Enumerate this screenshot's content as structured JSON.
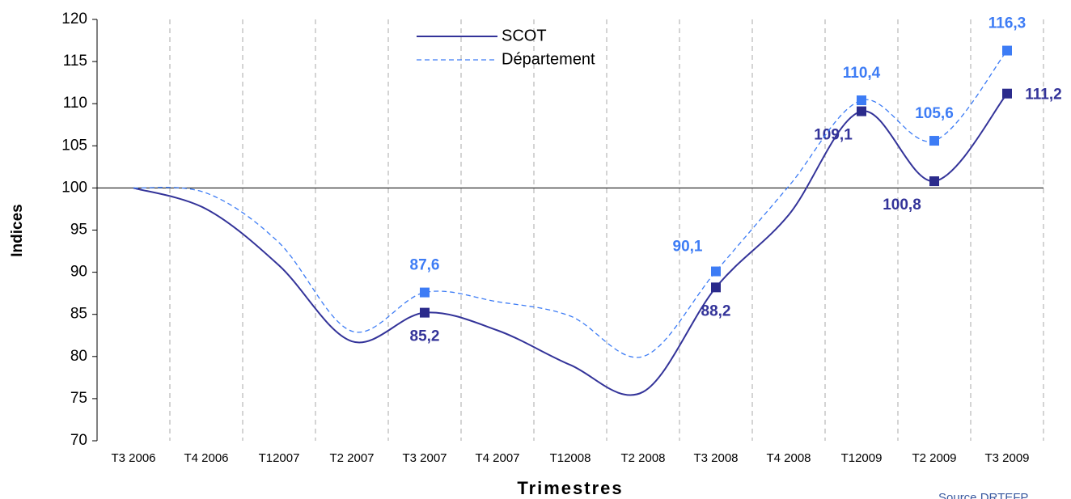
{
  "chart_data": {
    "type": "line",
    "y_label": "Indices",
    "x_label": "Trimestres",
    "source": "Source DRTEFP",
    "categories": [
      "T3 2006",
      "T4 2006",
      "T12007",
      "T2 2007",
      "T3 2007",
      "T4 2007",
      "T12008",
      "T2 2008",
      "T3 2008",
      "T4 2008",
      "T12009",
      "T2 2009",
      "T3 2009"
    ],
    "series": [
      {
        "name": "SCOT",
        "color": "#333399",
        "dashed": false,
        "values": [
          100,
          97.5,
          90.8,
          81.8,
          85.2,
          83.1,
          79,
          75.8,
          88.2,
          96.8,
          109.1,
          100.8,
          111.2
        ],
        "value_labels": [
          null,
          null,
          null,
          null,
          "85,2",
          null,
          null,
          null,
          "88,2",
          null,
          "109,1",
          "100,8",
          "111,2"
        ]
      },
      {
        "name": "Département",
        "color": "#3d7cf5",
        "dashed": true,
        "values": [
          100,
          99.4,
          93.5,
          83,
          87.6,
          86.5,
          84.8,
          80,
          90.1,
          100.2,
          110.4,
          105.6,
          116.3
        ],
        "value_labels": [
          null,
          null,
          null,
          null,
          "87,6",
          null,
          null,
          null,
          "90,1",
          null,
          "110,4",
          "105,6",
          "116,3"
        ]
      }
    ],
    "ylim": [
      70,
      120
    ],
    "yticks": [
      70,
      75,
      80,
      85,
      90,
      95,
      100,
      105,
      110,
      115,
      120
    ],
    "x_axis_crosses": 100,
    "vertical_grid": true
  }
}
